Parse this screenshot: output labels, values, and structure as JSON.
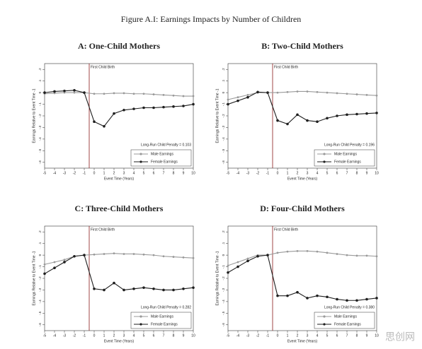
{
  "title": "Figure A.I: Earnings Impacts by Number of Children",
  "watermark": "思创网",
  "chart_data": [
    {
      "type": "line",
      "title": "A: One-Child Mothers",
      "y_label": "Earnings Relative to Event Time -1",
      "x_label": "Event Time (Years)",
      "x": [
        -5,
        -4,
        -3,
        -2,
        -1,
        0,
        1,
        2,
        3,
        4,
        5,
        6,
        7,
        8,
        9,
        10
      ],
      "xlim": [
        -5,
        10
      ],
      "xticks": [
        -5,
        -4,
        -3,
        -2,
        -1,
        0,
        1,
        2,
        3,
        4,
        5,
        6,
        7,
        8,
        9,
        10
      ],
      "ylim": [
        -0.65,
        0.25
      ],
      "yticks": [
        {
          "value": 0.2,
          "label": ".2"
        },
        {
          "value": 0.1,
          "label": ".1"
        },
        0,
        {
          "value": -0.1,
          "label": "-.1"
        },
        {
          "value": -0.2,
          "label": "-.2"
        },
        {
          "value": -0.3,
          "label": "-.3"
        },
        {
          "value": -0.4,
          "label": "-.4"
        },
        {
          "value": -0.5,
          "label": "-.5"
        },
        {
          "value": -0.6,
          "label": "-.6"
        }
      ],
      "event_line": {
        "x": -0.5,
        "label": "First Child Birth",
        "color": "#8b1a1a"
      },
      "penalty_label": "Long-Run Child Penalty = 0.103",
      "series": [
        {
          "name": "Male Earnings",
          "color": "#9a9a9a",
          "values": [
            -0.01,
            -0.005,
            0,
            0,
            0,
            -0.01,
            -0.01,
            -0.005,
            -0.005,
            -0.01,
            -0.01,
            -0.015,
            -0.02,
            -0.025,
            -0.03,
            -0.03
          ]
        },
        {
          "name": "Female Earnings",
          "color": "#1e1e1e",
          "values": [
            0,
            0.01,
            0.015,
            0.02,
            0,
            -0.25,
            -0.29,
            -0.18,
            -0.15,
            -0.14,
            -0.13,
            -0.13,
            -0.125,
            -0.12,
            -0.115,
            -0.1
          ]
        }
      ]
    },
    {
      "type": "line",
      "title": "B: Two-Child Mothers",
      "y_label": "Earnings Relative to Event Time -1",
      "x_label": "Event Time (Years)",
      "x": [
        -5,
        -4,
        -3,
        -2,
        -1,
        0,
        1,
        2,
        3,
        4,
        5,
        6,
        7,
        8,
        9,
        10
      ],
      "xlim": [
        -5,
        10
      ],
      "xticks": [
        -5,
        -4,
        -3,
        -2,
        -1,
        0,
        1,
        2,
        3,
        4,
        5,
        6,
        7,
        8,
        9,
        10
      ],
      "ylim": [
        -0.65,
        0.25
      ],
      "yticks": [
        {
          "value": 0.2,
          "label": ".2"
        },
        {
          "value": 0.1,
          "label": ".1"
        },
        0,
        {
          "value": -0.1,
          "label": "-.1"
        },
        {
          "value": -0.2,
          "label": "-.2"
        },
        {
          "value": -0.3,
          "label": "-.3"
        },
        {
          "value": -0.4,
          "label": "-.4"
        },
        {
          "value": -0.5,
          "label": "-.5"
        },
        {
          "value": -0.6,
          "label": "-.6"
        }
      ],
      "event_line": {
        "x": -0.5,
        "label": "First Child Birth",
        "color": "#8b1a1a"
      },
      "penalty_label": "Long-Run Child Penalty = 0.196",
      "series": [
        {
          "name": "Male Earnings",
          "color": "#9a9a9a",
          "values": [
            -0.06,
            -0.04,
            -0.02,
            0,
            0,
            0,
            0.005,
            0.01,
            0.01,
            0.005,
            0,
            -0.005,
            -0.01,
            -0.015,
            -0.02,
            -0.025
          ]
        },
        {
          "name": "Female Earnings",
          "color": "#1e1e1e",
          "values": [
            -0.1,
            -0.07,
            -0.04,
            0.005,
            0,
            -0.24,
            -0.27,
            -0.19,
            -0.24,
            -0.25,
            -0.22,
            -0.2,
            -0.19,
            -0.185,
            -0.18,
            -0.175
          ]
        }
      ]
    },
    {
      "type": "line",
      "title": "C: Three-Child Mothers",
      "y_label": "Earnings Relative to Event Time -1",
      "x_label": "Event Time (Years)",
      "x": [
        -5,
        -4,
        -3,
        -2,
        -1,
        0,
        1,
        2,
        3,
        4,
        5,
        6,
        7,
        8,
        9,
        10
      ],
      "xlim": [
        -5,
        10
      ],
      "xticks": [
        -5,
        -4,
        -3,
        -2,
        -1,
        0,
        1,
        2,
        3,
        4,
        5,
        6,
        7,
        8,
        9,
        10
      ],
      "ylim": [
        -0.65,
        0.25
      ],
      "yticks": [
        {
          "value": 0.2,
          "label": ".2"
        },
        {
          "value": 0.1,
          "label": ".1"
        },
        0,
        {
          "value": -0.1,
          "label": "-.1"
        },
        {
          "value": -0.2,
          "label": "-.2"
        },
        {
          "value": -0.3,
          "label": "-.3"
        },
        {
          "value": -0.4,
          "label": "-.4"
        },
        {
          "value": -0.5,
          "label": "-.5"
        },
        {
          "value": -0.6,
          "label": "-.6"
        }
      ],
      "event_line": {
        "x": -0.5,
        "label": "First Child Birth",
        "color": "#8b1a1a"
      },
      "penalty_label": "Long-Run Child Penalty = 0.282",
      "series": [
        {
          "name": "Male Earnings",
          "color": "#9a9a9a",
          "values": [
            -0.08,
            -0.06,
            -0.04,
            -0.01,
            0,
            0.005,
            0.01,
            0.015,
            0.01,
            0.01,
            0.005,
            0,
            -0.01,
            -0.015,
            -0.02,
            -0.025
          ]
        },
        {
          "name": "Female Earnings",
          "color": "#1e1e1e",
          "values": [
            -0.16,
            -0.11,
            -0.06,
            -0.01,
            0,
            -0.29,
            -0.3,
            -0.24,
            -0.3,
            -0.29,
            -0.28,
            -0.29,
            -0.3,
            -0.3,
            -0.29,
            -0.28
          ]
        }
      ]
    },
    {
      "type": "line",
      "title": "D: Four-Child Mothers",
      "y_label": "Earnings Relative to Event Time -1",
      "x_label": "Event Time (Years)",
      "x": [
        -5,
        -4,
        -3,
        -2,
        -1,
        0,
        1,
        2,
        3,
        4,
        5,
        6,
        7,
        8,
        9,
        10
      ],
      "xlim": [
        -5,
        10
      ],
      "xticks": [
        -5,
        -4,
        -3,
        -2,
        -1,
        0,
        1,
        2,
        3,
        4,
        5,
        6,
        7,
        8,
        9,
        10
      ],
      "ylim": [
        -0.65,
        0.25
      ],
      "yticks": [
        {
          "value": 0.2,
          "label": ".2"
        },
        {
          "value": 0.1,
          "label": ".1"
        },
        0,
        {
          "value": -0.1,
          "label": "-.1"
        },
        {
          "value": -0.2,
          "label": "-.2"
        },
        {
          "value": -0.3,
          "label": "-.3"
        },
        {
          "value": -0.4,
          "label": "-.4"
        },
        {
          "value": -0.5,
          "label": "-.5"
        },
        {
          "value": -0.6,
          "label": "-.6"
        }
      ],
      "event_line": {
        "x": -0.5,
        "label": "First Child Birth",
        "color": "#8b1a1a"
      },
      "penalty_label": "Long-Run Child Penalty = 0.380",
      "series": [
        {
          "name": "Male Earnings",
          "color": "#9a9a9a",
          "values": [
            -0.09,
            -0.06,
            -0.03,
            0,
            0,
            0.02,
            0.03,
            0.035,
            0.035,
            0.03,
            0.02,
            0.01,
            0,
            -0.005,
            -0.005,
            -0.01
          ]
        },
        {
          "name": "Female Earnings",
          "color": "#1e1e1e",
          "values": [
            -0.15,
            -0.1,
            -0.05,
            -0.01,
            0,
            -0.35,
            -0.35,
            -0.32,
            -0.37,
            -0.35,
            -0.36,
            -0.38,
            -0.39,
            -0.39,
            -0.38,
            -0.37
          ]
        }
      ]
    }
  ]
}
